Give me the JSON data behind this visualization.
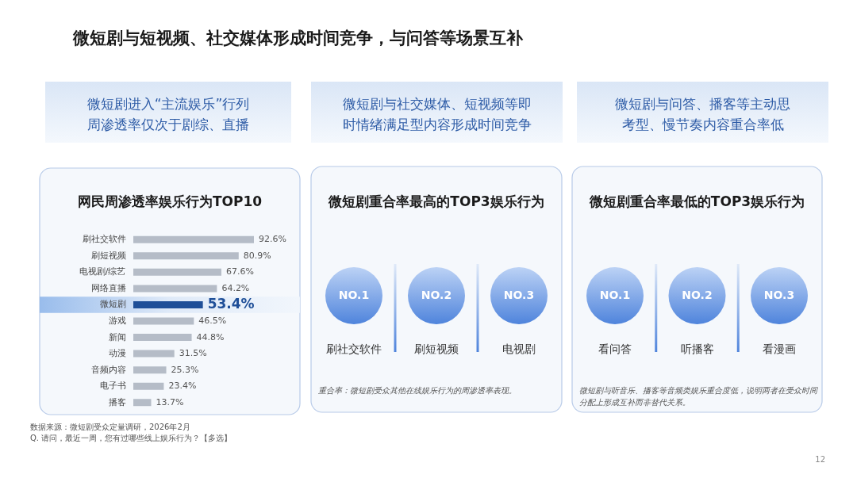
{
  "chart_data": [
    {
      "type": "bar",
      "orientation": "horizontal",
      "title": "网民周渗透率娱乐行为TOP10",
      "subtitle": "微短剧进入“主流娱乐”行列周渗透率仅次于剧综、直播",
      "categories": [
        "刷社交软件",
        "刷短视频",
        "电视剧/综艺",
        "网络直播",
        "微短剧",
        "游戏",
        "新闻",
        "动漫",
        "音频内容",
        "电子书",
        "播客"
      ],
      "values": [
        92.6,
        80.9,
        67.6,
        64.2,
        53.4,
        46.5,
        44.8,
        31.5,
        25.3,
        23.4,
        13.7
      ],
      "value_labels": [
        "92.6%",
        "80.9%",
        "67.6%",
        "64.2%",
        "53.4%",
        "46.5%",
        "44.8%",
        "31.5%",
        "25.3%",
        "23.4%",
        "13.7%"
      ],
      "colors": [
        "#b5bcc7",
        "#b5bcc7",
        "#b5bcc7",
        "#b5bcc7",
        "#1f4f98",
        "#b5bcc7",
        "#b5bcc7",
        "#b5bcc7",
        "#b5bcc7",
        "#b5bcc7",
        "#b5bcc7"
      ],
      "bands": [
        {
          "axis": "y",
          "from": "微短剧",
          "to": "微短剧",
          "color": "#8fb6ea"
        }
      ],
      "tick_labels": "y",
      "annotations": [
        "微短剧与短视频、社交媒体形成时间竞争，与问答等场景互补",
        "数据来源：微短剧受众定量调研，2026年2月",
        "Q. 请问，最近一周，您有过哪些线上娱乐行为？【多选】",
        "12"
      ]
    },
    {
      "type": "other",
      "title": "微短剧重合率最高的TOP3娱乐行为",
      "subtitle": "微短剧与社交媒体、短视频等即时情绪满足型内容形成时间竞争",
      "categories": [
        "刷社交软件",
        "刷短视频",
        "电视剧"
      ],
      "annotations": [
        "NO.1",
        "NO.2",
        "NO.3",
        "重合率：微短剧受众其他在线娱乐行为的周渗透率表现。"
      ]
    },
    {
      "type": "other",
      "title": "微短剧重合率最低的TOP3娱乐行为",
      "subtitle": "微短剧与问答、播客等主动思考型、慢节奏内容重合率低",
      "categories": [
        "看问答",
        "听播客",
        "看漫画"
      ],
      "annotations": [
        "NO.1",
        "NO.2",
        "NO.3",
        "微短剧与听音乐、播客等音频类娱乐重合度低，说明两者在受众时间分配上形成互补而非替代关系。"
      ]
    }
  ]
}
